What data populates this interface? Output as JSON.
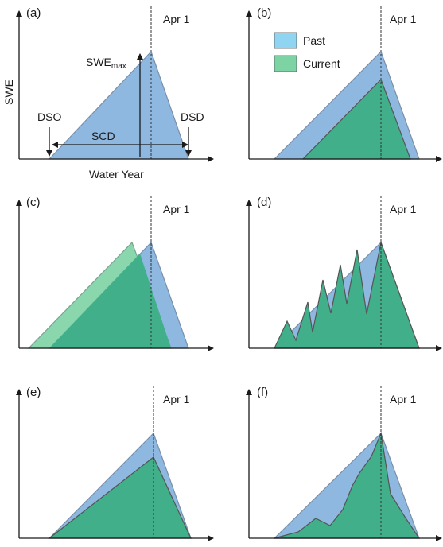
{
  "legend": {
    "past_label": "Past",
    "current_label": "Current",
    "past_color": "#8fb8e0",
    "current_color": "#41b08a"
  },
  "reference_label": "Apr 1",
  "panels": [
    {
      "id": "a",
      "label": "(a)"
    },
    {
      "id": "b",
      "label": "(b)"
    },
    {
      "id": "c",
      "label": "(c)"
    },
    {
      "id": "d",
      "label": "(d)"
    },
    {
      "id": "e",
      "label": "(e)"
    },
    {
      "id": "f",
      "label": "(f)"
    }
  ],
  "panel_a": {
    "y_axis_label": "SWE",
    "x_axis_label": "Water Year",
    "swe_max_main": "SWE",
    "swe_max_sub": "max",
    "dso_label": "DSO",
    "dsd_label": "DSD",
    "scd_label": "SCD"
  }
}
